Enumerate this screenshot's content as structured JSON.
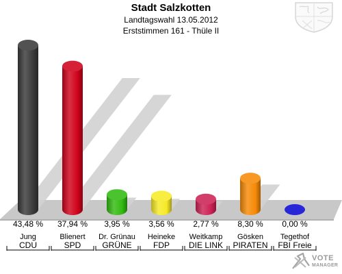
{
  "chart_data": {
    "type": "bar",
    "title": "Stadt Salzkotten",
    "subtitle_1": "Landtagswahl 13.05.2012",
    "subtitle_2": "Erststimmen 161 - Thüle II",
    "candidates": [
      "Jung",
      "Blienert",
      "Dr. Grünau",
      "Heineke",
      "Weitkamp",
      "Gösken",
      "Tegethof"
    ],
    "parties": [
      "CDU",
      "SPD",
      "GRÜNE",
      "FDP",
      "DIE LINK",
      "PIRATEN",
      "FBI Freie"
    ],
    "values": [
      43.48,
      37.94,
      3.95,
      3.56,
      2.77,
      8.3,
      0.0
    ],
    "value_labels": [
      "43,48 %",
      "37,94 %",
      "3,95 %",
      "3,56 %",
      "2,77 %",
      "8,30 %",
      "0,00 %"
    ],
    "colors": [
      "#3a3a3a",
      "#d0021b",
      "#33bb11",
      "#f7ea27",
      "#cc2255",
      "#f78a07",
      "#0a0ad2"
    ],
    "ylim": [
      0,
      43.48
    ],
    "grid": false
  },
  "branding": {
    "crest": "state-coat-of-arms-icon",
    "logo_line1": "VOTE",
    "logo_line2": "MANAGER"
  }
}
